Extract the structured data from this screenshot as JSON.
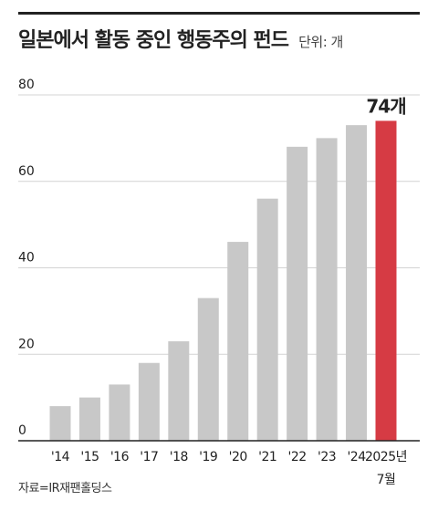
{
  "header": {
    "title": "일본에서 활동 중인 행동주의 펀드",
    "unit": "단위: 개"
  },
  "chart_data": {
    "type": "bar",
    "title": "일본에서 활동 중인 행동주의 펀드",
    "ylabel": "",
    "xlabel": "",
    "ylim": [
      0,
      80
    ],
    "yticks": [
      "0",
      "20",
      "40",
      "60",
      "80"
    ],
    "grid": true,
    "categories": [
      "'14",
      "'15",
      "'16",
      "'17",
      "'18",
      "'19",
      "'20",
      "'21",
      "'22",
      "'23",
      "'24",
      "2025년 7월"
    ],
    "category_lines": [
      [
        "'14"
      ],
      [
        "'15"
      ],
      [
        "'16"
      ],
      [
        "'17"
      ],
      [
        "'18"
      ],
      [
        "'19"
      ],
      [
        "'20"
      ],
      [
        "'21"
      ],
      [
        "'22"
      ],
      [
        "'23"
      ],
      [
        "'24"
      ],
      [
        "2025년",
        "7월"
      ]
    ],
    "values": [
      8,
      10,
      13,
      18,
      23,
      33,
      46,
      56,
      68,
      70,
      73,
      74
    ],
    "highlight_index": 11,
    "highlight_label": "74개",
    "colors": {
      "bar": "#c8c8c8",
      "highlight": "#d63b44",
      "grid": "#d4d4d4",
      "axis": "#222222",
      "text": "#222222"
    }
  },
  "footer": {
    "source": "자료=IR재팬홀딩스"
  }
}
